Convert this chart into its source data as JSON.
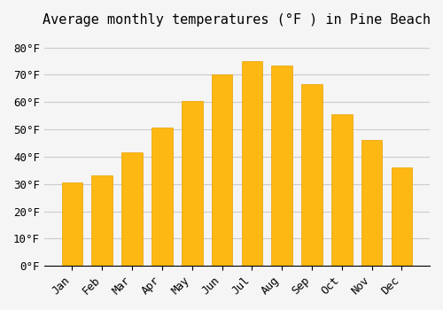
{
  "title": "Average monthly temperatures (°F ) in Pine Beach",
  "months": [
    "Jan",
    "Feb",
    "Mar",
    "Apr",
    "May",
    "Jun",
    "Jul",
    "Aug",
    "Sep",
    "Oct",
    "Nov",
    "Dec"
  ],
  "values": [
    30.5,
    33,
    41.5,
    50.5,
    60.5,
    70,
    75,
    73.5,
    66.5,
    55.5,
    46,
    36
  ],
  "bar_color": "#FDB813",
  "bar_edge_color": "#E8A000",
  "background_color": "#F5F5F5",
  "grid_color": "#CCCCCC",
  "ylim": [
    0,
    85
  ],
  "yticks": [
    0,
    10,
    20,
    30,
    40,
    50,
    60,
    70,
    80
  ],
  "title_fontsize": 11,
  "tick_fontsize": 9,
  "font_family": "monospace"
}
